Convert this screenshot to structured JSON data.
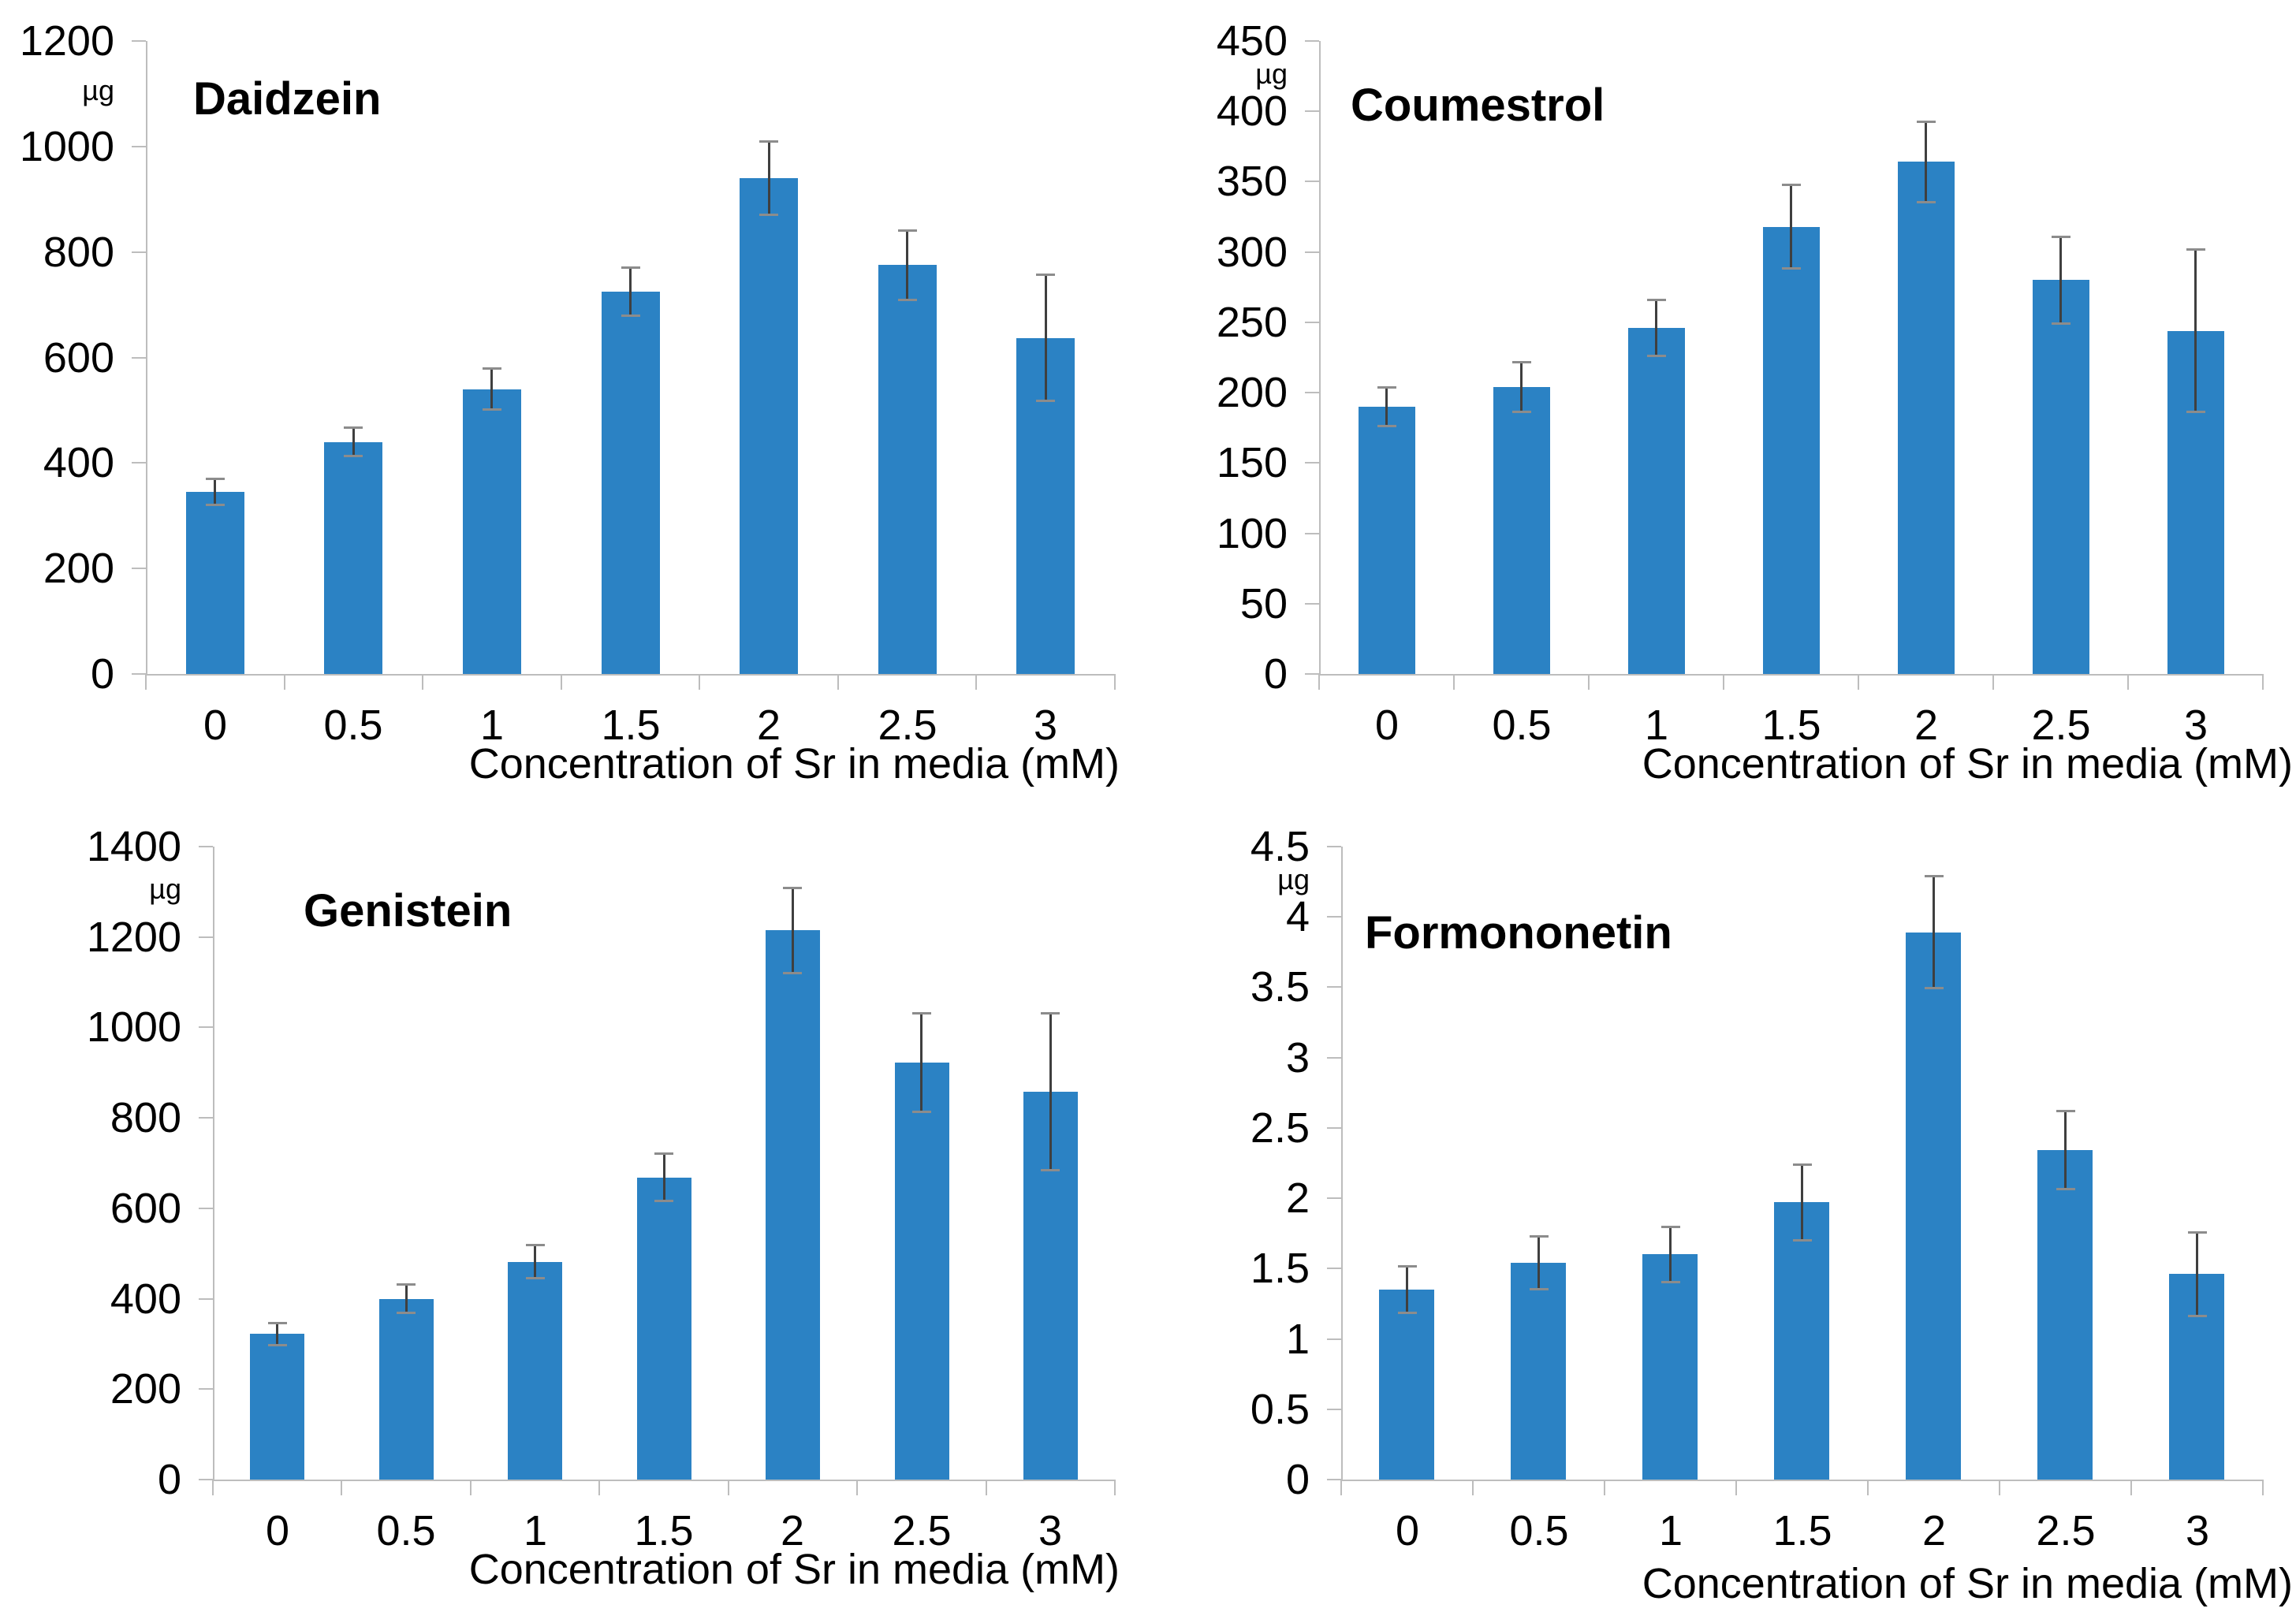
{
  "figure": {
    "description": "Four bar charts showing phytoestrogen production (µg) versus strontium concentration in media",
    "background": "#ffffff"
  },
  "colors": {
    "bar": "#2b82c4",
    "error_bar_line": "#3f3f3f",
    "error_bar_cap": "#8c8c8c",
    "axis_line": "#bdbdbd",
    "text": "#000000"
  },
  "chart_data": [
    {
      "type": "bar",
      "title": "Daidzein",
      "unit": "µg",
      "xlabel": "Concentration of Sr in media (mM)",
      "categories": [
        "0",
        "0.5",
        "1",
        "1.5",
        "2",
        "2.5",
        "3"
      ],
      "values": [
        345,
        440,
        540,
        725,
        940,
        775,
        637
      ],
      "errors": [
        25,
        27,
        40,
        46,
        70,
        67,
        120
      ],
      "ylim": [
        0,
        1200
      ],
      "yticks": [
        "0",
        "200",
        "400",
        "600",
        "800",
        "1000",
        "1200"
      ],
      "legend": "none",
      "grid": "off"
    },
    {
      "type": "bar",
      "title": "Coumestrol",
      "unit": "µg",
      "xlabel": "Concentration of Sr in media (mM)",
      "categories": [
        "0",
        "0.5",
        "1",
        "1.5",
        "2",
        "2.5",
        "3"
      ],
      "values": [
        190,
        204,
        246,
        318,
        364,
        280,
        244
      ],
      "errors": [
        14,
        18,
        20,
        30,
        29,
        31,
        58
      ],
      "ylim": [
        0,
        450
      ],
      "yticks": [
        "0",
        "50",
        "100",
        "150",
        "200",
        "250",
        "300",
        "350",
        "400",
        "450"
      ],
      "legend": "none",
      "grid": "off"
    },
    {
      "type": "bar",
      "title": "Genistein",
      "unit": "µg",
      "xlabel": "Concentration of Sr in media (mM)",
      "categories": [
        "0",
        "0.5",
        "1",
        "1.5",
        "2",
        "2.5",
        "3"
      ],
      "values": [
        322,
        400,
        482,
        668,
        1215,
        922,
        858
      ],
      "errors": [
        25,
        32,
        38,
        53,
        95,
        110,
        175
      ],
      "ylim": [
        0,
        1400
      ],
      "yticks": [
        "0",
        "200",
        "400",
        "600",
        "800",
        "1000",
        "1200",
        "1400"
      ],
      "legend": "none",
      "grid": "off"
    },
    {
      "type": "bar",
      "title": "Formononetin",
      "unit": "µg",
      "xlabel": "Concentration of Sr in media (mM)",
      "categories": [
        "0",
        "0.5",
        "1",
        "1.5",
        "2",
        "2.5",
        "3"
      ],
      "values": [
        1.35,
        1.54,
        1.6,
        1.97,
        3.89,
        2.34,
        1.46
      ],
      "errors": [
        0.17,
        0.19,
        0.2,
        0.27,
        0.4,
        0.28,
        0.3
      ],
      "ylim": [
        0,
        4.5
      ],
      "yticks": [
        "0",
        "0.5",
        "1",
        "1.5",
        "2",
        "2.5",
        "3",
        "3.5",
        "4",
        "4.5"
      ],
      "legend": "none",
      "grid": "off"
    }
  ]
}
